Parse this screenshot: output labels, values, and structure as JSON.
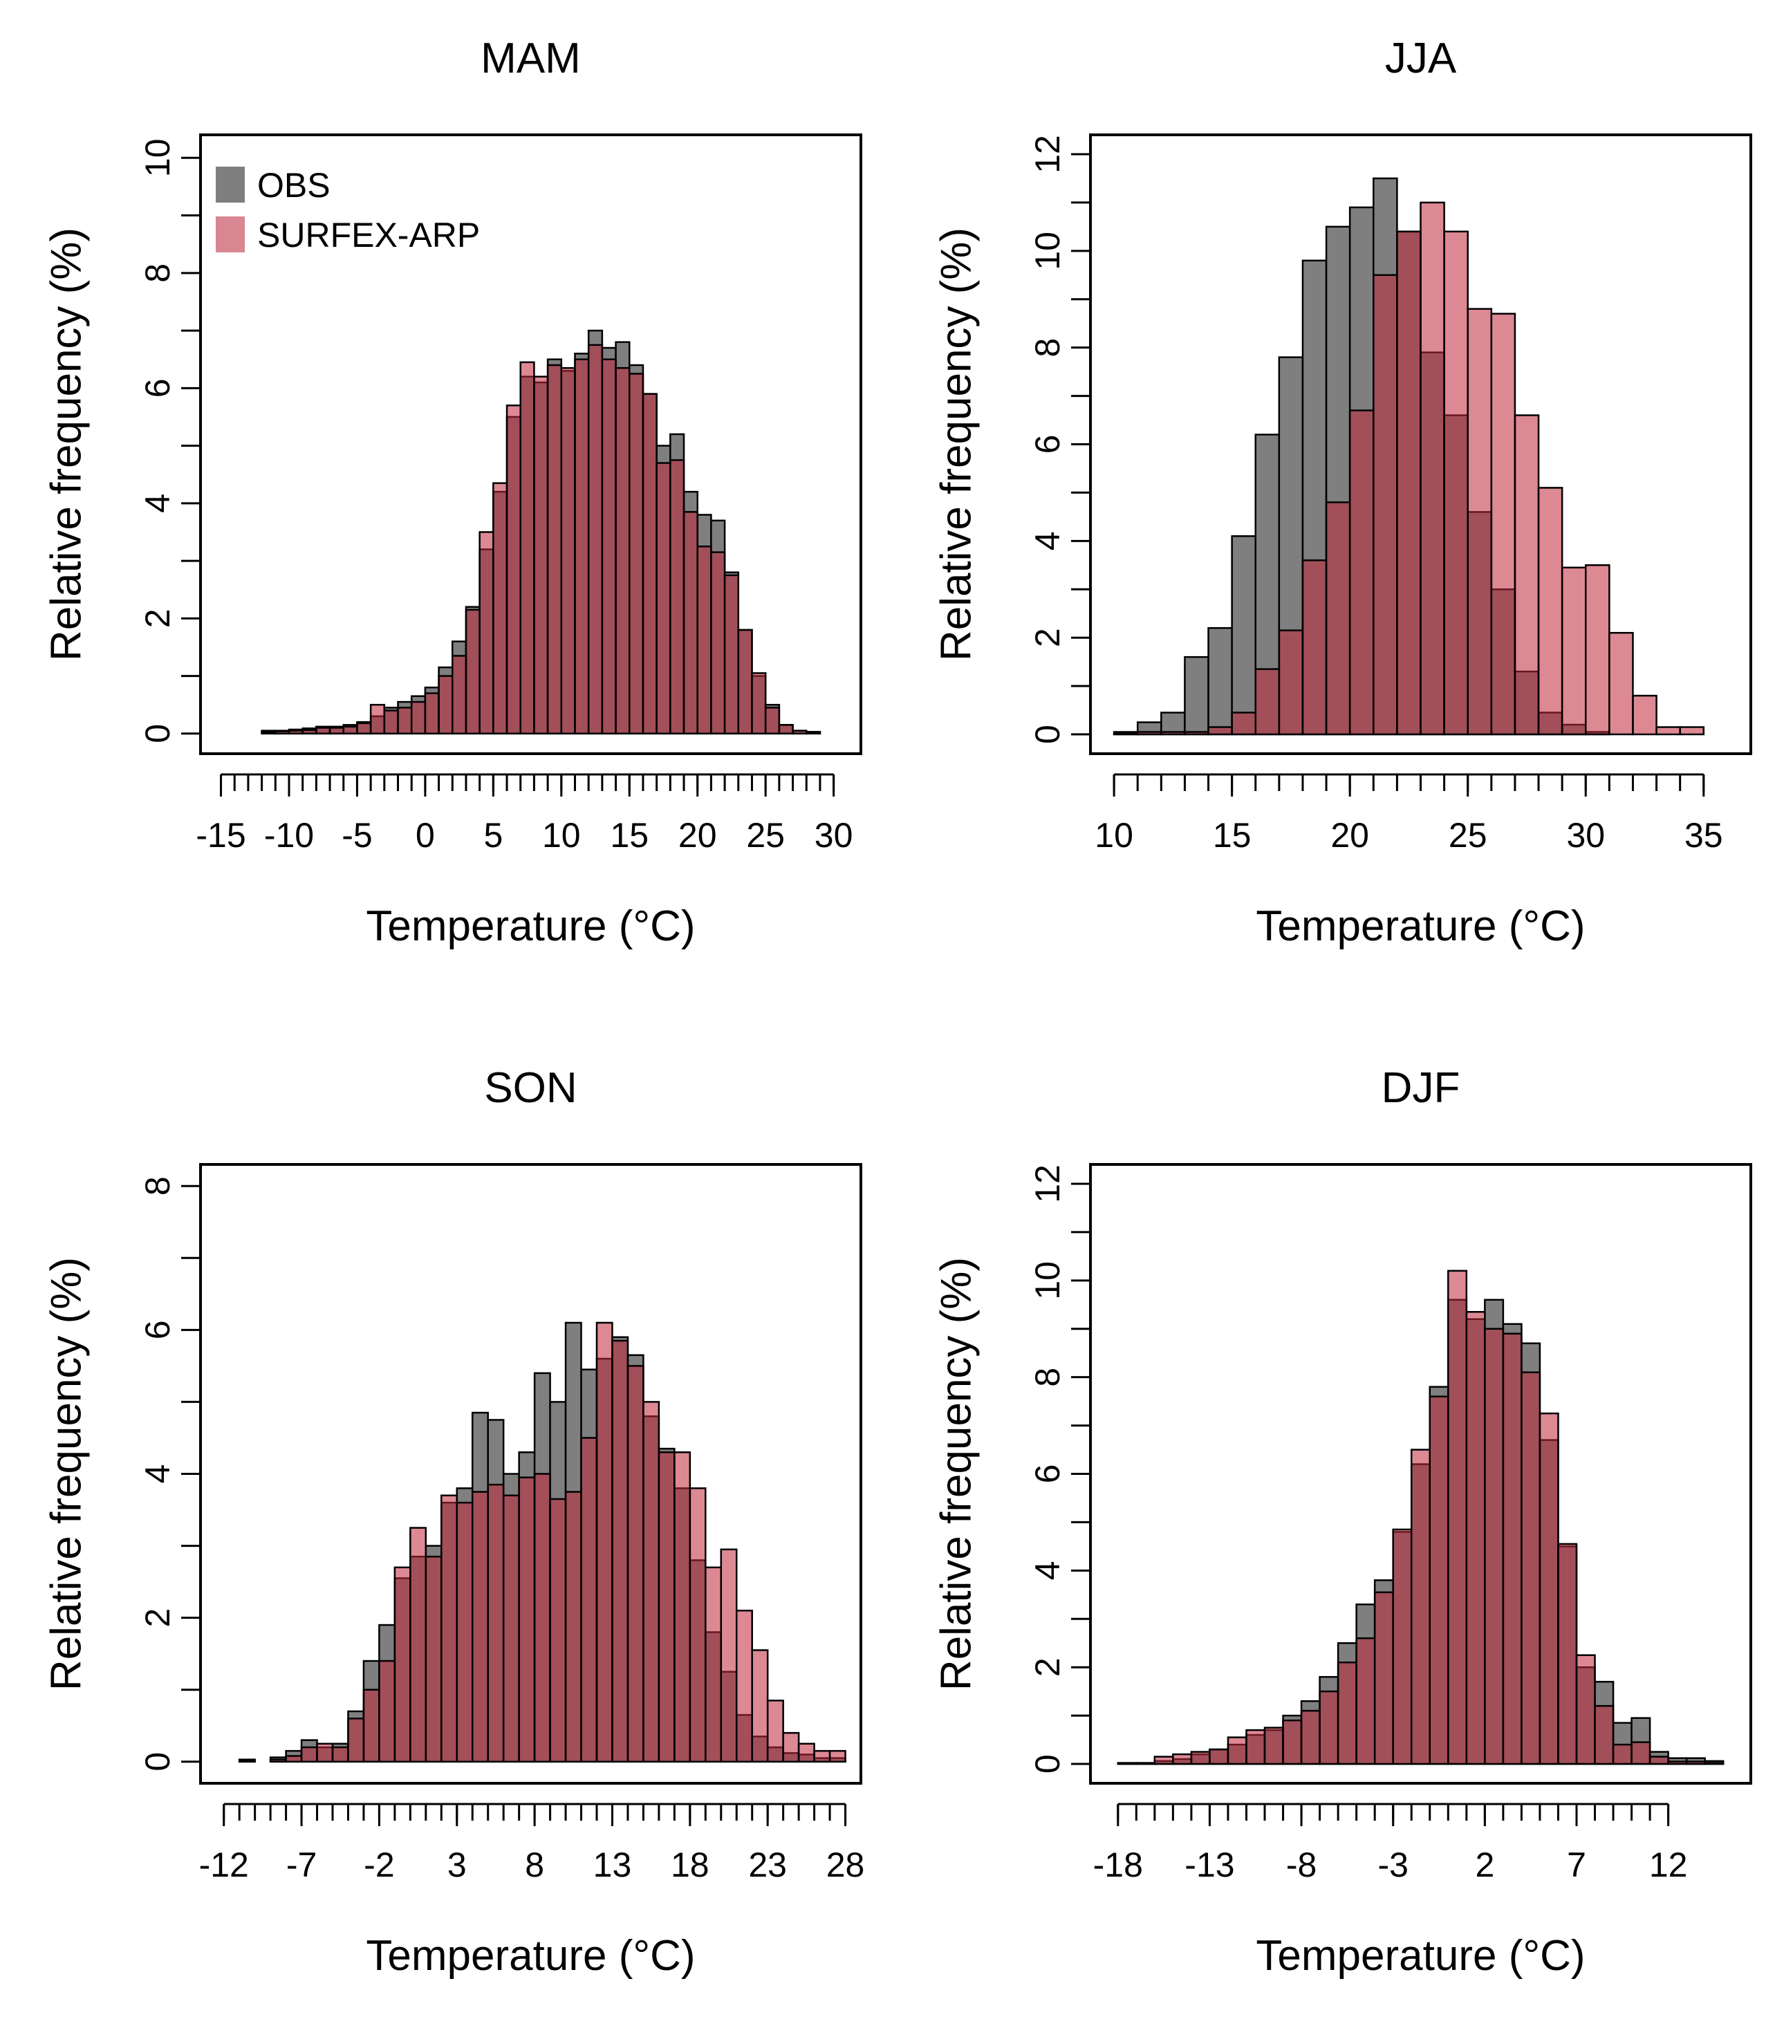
{
  "colors": {
    "obs": "#7f7f7f",
    "model": "#c0283c",
    "overlap": "#8a2f3d"
  },
  "legend": {
    "obs_label": "OBS",
    "model_label": "SURFEX-ARP"
  },
  "chart_data": [
    {
      "type": "bar",
      "title": "MAM",
      "xlabel": "Temperature (°C)",
      "ylabel": "Relative frequency (%)",
      "legend": "top-left",
      "xlim": [
        -16.5,
        32.0
      ],
      "ylim": [
        -0.35,
        10.4
      ],
      "xticks": [
        -15,
        -10,
        -5,
        0,
        5,
        10,
        15,
        20,
        25,
        30
      ],
      "xtick_labels": [
        "-15",
        "-10",
        "-5",
        "0",
        "5",
        "10",
        "15",
        "20",
        "25",
        "30"
      ],
      "yticks": [
        0,
        2,
        4,
        6,
        8,
        10
      ],
      "ytick_labels": [
        "0",
        "2",
        "4",
        "6",
        "8",
        "10"
      ],
      "minor_step": 1,
      "bin_start": -15,
      "bin_width": 1,
      "series": [
        {
          "name": "OBS",
          "values": [
            0,
            0,
            0,
            0.05,
            0.05,
            0.07,
            0.09,
            0.12,
            0.12,
            0.15,
            0.2,
            0.3,
            0.45,
            0.55,
            0.65,
            0.8,
            1.15,
            1.6,
            2.2,
            3.2,
            4.2,
            5.5,
            6.2,
            6.1,
            6.5,
            6.3,
            6.6,
            7.0,
            6.7,
            6.8,
            6.4,
            5.9,
            5.0,
            5.2,
            4.2,
            3.8,
            3.7,
            2.8,
            1.8,
            1.0,
            0.5,
            0.15,
            0.05,
            0.03,
            0,
            0
          ]
        },
        {
          "name": "SURFEX-ARP",
          "values": [
            0,
            0,
            0,
            0.03,
            0.04,
            0.05,
            0.06,
            0.1,
            0.1,
            0.12,
            0.18,
            0.5,
            0.4,
            0.45,
            0.55,
            0.7,
            1.0,
            1.35,
            2.15,
            3.5,
            4.35,
            5.7,
            6.45,
            6.2,
            6.4,
            6.35,
            6.5,
            6.75,
            6.5,
            6.35,
            6.25,
            5.9,
            4.7,
            4.75,
            3.85,
            3.25,
            3.15,
            2.75,
            1.8,
            1.05,
            0.45,
            0.15,
            0.05,
            0.02,
            0,
            0
          ]
        }
      ]
    },
    {
      "type": "bar",
      "title": "JJA",
      "xlabel": "Temperature (°C)",
      "ylabel": "Relative frequency (%)",
      "xlim": [
        9.0,
        37.0
      ],
      "ylim": [
        -0.4,
        12.4
      ],
      "xticks": [
        10,
        15,
        20,
        25,
        30,
        35
      ],
      "xtick_labels": [
        "10",
        "15",
        "20",
        "25",
        "30",
        "35"
      ],
      "yticks": [
        0,
        2,
        4,
        6,
        8,
        10,
        12
      ],
      "ytick_labels": [
        "0",
        "2",
        "4",
        "6",
        "8",
        "10",
        "12"
      ],
      "minor_step": 1,
      "bin_start": 10,
      "bin_width": 1,
      "series": [
        {
          "name": "OBS",
          "values": [
            0.05,
            0.25,
            0.45,
            1.6,
            2.2,
            4.1,
            6.2,
            7.8,
            9.8,
            10.5,
            10.9,
            11.5,
            10.4,
            7.9,
            6.6,
            4.6,
            3.0,
            1.3,
            0.45,
            0.2,
            0.05,
            0,
            0,
            0,
            0,
            0
          ]
        },
        {
          "name": "SURFEX-ARP",
          "values": [
            0.02,
            0.05,
            0.05,
            0.05,
            0.15,
            0.45,
            1.35,
            2.15,
            3.6,
            4.8,
            6.7,
            9.5,
            10.4,
            11.0,
            10.4,
            8.8,
            8.7,
            6.6,
            5.1,
            3.45,
            3.5,
            2.1,
            0.8,
            0.15,
            0.15,
            0
          ]
        }
      ]
    },
    {
      "type": "bar",
      "title": "SON",
      "xlabel": "Temperature (°C)",
      "ylabel": "Relative frequency (%)",
      "xlim": [
        -13.5,
        29.0
      ],
      "ylim": [
        -0.3,
        8.3
      ],
      "xticks": [
        -12,
        -7,
        -2,
        3,
        8,
        13,
        18,
        23,
        28
      ],
      "xtick_labels": [
        "-12",
        "-7",
        "-2",
        "3",
        "8",
        "13",
        "18",
        "23",
        "28"
      ],
      "yticks": [
        0,
        2,
        4,
        6,
        8
      ],
      "ytick_labels": [
        "0",
        "2",
        "4",
        "6",
        "8"
      ],
      "minor_step": 1,
      "bin_start": -12,
      "bin_width": 1,
      "series": [
        {
          "name": "OBS",
          "values": [
            0,
            0.03,
            0,
            0.06,
            0.15,
            0.3,
            0.2,
            0.25,
            0.7,
            1.4,
            1.9,
            2.55,
            2.85,
            3.0,
            3.6,
            3.8,
            4.85,
            4.75,
            4.0,
            4.3,
            5.4,
            5.0,
            6.1,
            5.45,
            5.6,
            5.9,
            5.65,
            4.8,
            4.35,
            3.8,
            2.8,
            1.8,
            1.25,
            0.65,
            0.35,
            0.2,
            0.12,
            0.1,
            0.05,
            0.05
          ]
        },
        {
          "name": "SURFEX-ARP",
          "values": [
            0,
            0.02,
            0,
            0.03,
            0.08,
            0.2,
            0.25,
            0.2,
            0.6,
            1.0,
            1.4,
            2.7,
            3.25,
            2.85,
            3.7,
            3.6,
            3.75,
            3.85,
            3.7,
            3.95,
            4.0,
            3.65,
            3.75,
            4.5,
            6.1,
            5.85,
            5.5,
            5.0,
            4.3,
            4.3,
            3.8,
            2.7,
            2.95,
            2.1,
            1.55,
            0.85,
            0.4,
            0.25,
            0.15,
            0.15
          ]
        }
      ]
    },
    {
      "type": "bar",
      "title": "DJF",
      "xlabel": "Temperature (°C)",
      "ylabel": "Relative frequency (%)",
      "xlim": [
        -19.5,
        16.5
      ],
      "ylim": [
        -0.4,
        12.4
      ],
      "xticks": [
        -18,
        -13,
        -8,
        -3,
        2,
        7,
        12
      ],
      "xtick_labels": [
        "-18",
        "-13",
        "-8",
        "-3",
        "2",
        "7",
        "12"
      ],
      "yticks": [
        0,
        2,
        4,
        6,
        8,
        10,
        12
      ],
      "ytick_labels": [
        "0",
        "2",
        "4",
        "6",
        "8",
        "10",
        "12"
      ],
      "minor_step": 1,
      "bin_start": -18,
      "bin_width": 1,
      "series": [
        {
          "name": "OBS",
          "values": [
            0.02,
            0.02,
            0.06,
            0.1,
            0.2,
            0.3,
            0.4,
            0.6,
            0.7,
            1.0,
            1.3,
            1.8,
            2.5,
            3.3,
            3.8,
            4.8,
            6.2,
            7.8,
            9.6,
            9.2,
            9.6,
            9.1,
            8.7,
            6.7,
            4.5,
            2.0,
            1.7,
            0.85,
            0.95,
            0.25,
            0.12,
            0.12,
            0.06
          ]
        },
        {
          "name": "SURFEX-ARP",
          "values": [
            0.02,
            0.02,
            0.15,
            0.2,
            0.25,
            0.3,
            0.55,
            0.7,
            0.75,
            0.9,
            1.1,
            1.5,
            2.1,
            2.6,
            3.55,
            4.85,
            6.5,
            7.6,
            10.2,
            9.35,
            9.0,
            8.9,
            8.1,
            7.25,
            4.55,
            2.25,
            1.2,
            0.4,
            0.45,
            0.15,
            0.05,
            0.05,
            0.02
          ]
        }
      ]
    }
  ]
}
